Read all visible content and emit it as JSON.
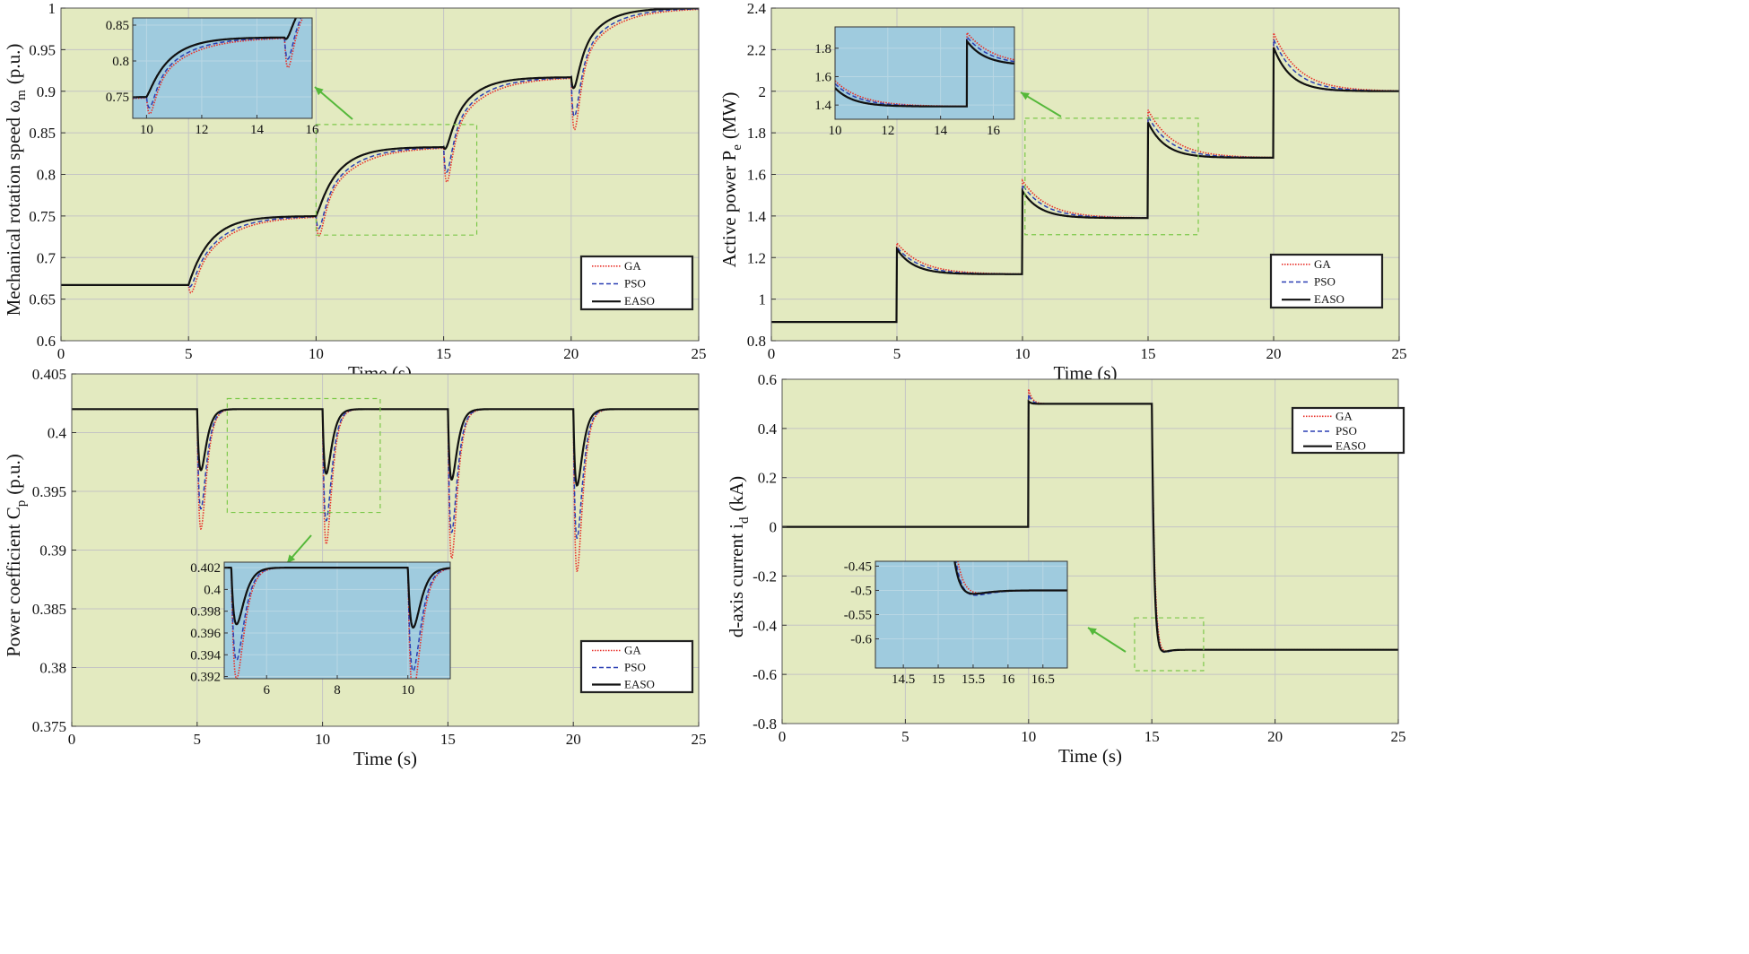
{
  "colors": {
    "plot_bg": "#e3eac0",
    "inset_bg": "#9fcbde",
    "grid": "#c4c4c4",
    "ga": "#e8302a",
    "pso": "#2a3fb3",
    "easo": "#111111",
    "zoom_box": "#7cc84a",
    "arrow": "#55b83a"
  },
  "legend": [
    "GA",
    "PSO",
    "EASO"
  ],
  "chart_data": [
    {
      "id": "rotation-speed",
      "type": "line",
      "title": "",
      "xlabel": "Time (s)",
      "ylabel": "Mechanical rotation speed ω",
      "ylabel_sub": "m",
      "ylabel_unit": "(p.u.)",
      "xlim": [
        0,
        25
      ],
      "ylim": [
        0.6,
        1.0
      ],
      "xticks": [
        0,
        5,
        10,
        15,
        20,
        25
      ],
      "yticks": [
        0.6,
        0.65,
        0.7,
        0.75,
        0.8,
        0.85,
        0.9,
        0.95,
        1.0
      ],
      "ytick_labels": [
        "0.6",
        "0.65",
        "0.7",
        "0.75",
        "0.8",
        "0.85",
        "0.9",
        "0.95",
        "1"
      ],
      "legend_position": "lower-right",
      "inset_position": "top-left",
      "step_times": [
        5,
        10,
        15,
        20
      ],
      "levels": [
        0.667,
        0.75,
        0.833,
        0.917,
        1.0
      ],
      "dips": {
        "GA": [
          0.65,
          0.718,
          0.782,
          0.845
        ],
        "PSO": [
          0.658,
          0.726,
          0.793,
          0.86
        ],
        "EASO": [
          0.667,
          0.748,
          0.822,
          0.893
        ]
      },
      "peaks": {
        "GA": [
          null,
          null,
          null,
          null
        ],
        "PSO": [
          null,
          null,
          null,
          null
        ],
        "EASO": [
          null,
          null,
          null,
          null
        ]
      },
      "tau": [
        1.0,
        1.0,
        1.0,
        1.0
      ],
      "inset": {
        "xlim": [
          9.5,
          16
        ],
        "ylim": [
          0.72,
          0.86
        ],
        "xticks": [
          10,
          12,
          14,
          16
        ],
        "yticks": [
          0.75,
          0.8,
          0.85
        ],
        "xtick_labels": [
          "10",
          "12",
          "14",
          "16"
        ],
        "ytick_labels": [
          "0.75",
          "0.8",
          "0.85"
        ]
      },
      "zoom_region": {
        "x": [
          10,
          16.3
        ],
        "y": [
          0.727,
          0.86
        ]
      }
    },
    {
      "id": "active-power",
      "type": "line",
      "title": "",
      "xlabel": "Time (s)",
      "ylabel": "Active power P",
      "ylabel_sub": "e",
      "ylabel_unit": "(MW)",
      "xlim": [
        0,
        25
      ],
      "ylim": [
        0.8,
        2.4
      ],
      "xticks": [
        0,
        5,
        10,
        15,
        20,
        25
      ],
      "yticks": [
        0.8,
        1.0,
        1.2,
        1.4,
        1.6,
        1.8,
        2.0,
        2.2,
        2.4
      ],
      "ytick_labels": [
        "0.8",
        "1",
        "1.2",
        "1.4",
        "1.6",
        "1.8",
        "2",
        "2.2",
        "2.4"
      ],
      "legend_position": "lower-right",
      "inset_position": "top-left",
      "step_times": [
        5,
        10,
        15,
        20
      ],
      "levels": [
        0.89,
        1.12,
        1.39,
        1.68,
        2.0
      ],
      "dips": {
        "GA": [
          null,
          null,
          null,
          null
        ],
        "PSO": [
          null,
          null,
          null,
          null
        ],
        "EASO": [
          null,
          null,
          null,
          null
        ]
      },
      "peaks": {
        "GA": [
          1.27,
          1.57,
          1.91,
          2.28
        ],
        "PSO": [
          1.25,
          1.55,
          1.88,
          2.25
        ],
        "EASO": [
          1.24,
          1.52,
          1.85,
          2.21
        ]
      },
      "tau": [
        0.8,
        0.8,
        0.8,
        0.8
      ],
      "inset": {
        "xlim": [
          10,
          16.8
        ],
        "ylim": [
          1.3,
          1.95
        ],
        "xticks": [
          10,
          12,
          14,
          16
        ],
        "yticks": [
          1.4,
          1.6,
          1.8
        ],
        "xtick_labels": [
          "10",
          "12",
          "14",
          "16"
        ],
        "ytick_labels": [
          "1.4",
          "1.6",
          "1.8"
        ]
      },
      "zoom_region": {
        "x": [
          10.1,
          17.0
        ],
        "y": [
          1.31,
          1.87
        ]
      }
    },
    {
      "id": "power-coefficient",
      "type": "line",
      "title": "",
      "xlabel": "Time (s)",
      "ylabel": "Power coefficient C",
      "ylabel_sub": "p",
      "ylabel_unit": "(p.u.)",
      "xlim": [
        0,
        25
      ],
      "ylim": [
        0.375,
        0.405
      ],
      "xticks": [
        0,
        5,
        10,
        15,
        20,
        25
      ],
      "yticks": [
        0.375,
        0.38,
        0.385,
        0.39,
        0.395,
        0.4,
        0.405
      ],
      "ytick_labels": [
        "0.375",
        "0.38",
        "0.385",
        "0.39",
        "0.395",
        "0.4",
        "0.405"
      ],
      "legend_position": "lower-right",
      "inset_position": "lower-center",
      "step_times": [
        5,
        10,
        15,
        20
      ],
      "levels": [
        0.402,
        0.402,
        0.402,
        0.402,
        0.402
      ],
      "dips": {
        "GA": [
          0.3918,
          0.3905,
          0.3893,
          0.3882
        ],
        "PSO": [
          0.3935,
          0.3925,
          0.3915,
          0.391
        ],
        "EASO": [
          0.3968,
          0.3965,
          0.396,
          0.3955
        ]
      },
      "peaks": {
        "GA": [
          null,
          null,
          null,
          null
        ],
        "PSO": [
          null,
          null,
          null,
          null
        ],
        "EASO": [
          null,
          null,
          null,
          null
        ]
      },
      "tau": [
        0.45,
        0.45,
        0.45,
        0.45
      ],
      "inset": {
        "xlim": [
          4.8,
          11.2
        ],
        "ylim": [
          0.3918,
          0.4025
        ],
        "xticks": [
          6,
          8,
          10
        ],
        "yticks": [
          0.392,
          0.394,
          0.396,
          0.398,
          0.4,
          0.402
        ],
        "xtick_labels": [
          "6",
          "8",
          "10"
        ],
        "ytick_labels": [
          "0.392",
          "0.394",
          "0.396",
          "0.398",
          "0.4",
          "0.402"
        ]
      },
      "zoom_region": {
        "x": [
          6.2,
          12.3
        ],
        "y": [
          0.3932,
          0.4029
        ]
      }
    },
    {
      "id": "d-axis-current",
      "type": "line",
      "title": "",
      "xlabel": "Time (s)",
      "ylabel": "d-axis current i",
      "ylabel_sub": "d",
      "ylabel_unit": "(kA)",
      "xlim": [
        0,
        25
      ],
      "ylim": [
        -0.8,
        0.6
      ],
      "xticks": [
        0,
        5,
        10,
        15,
        20,
        25
      ],
      "yticks": [
        -0.8,
        -0.6,
        -0.4,
        -0.2,
        0,
        0.2,
        0.4,
        0.6
      ],
      "ytick_labels": [
        "-0.8",
        "-0.6",
        "-0.4",
        "-0.2",
        "0",
        "0.2",
        "0.4",
        "0.6"
      ],
      "legend_position": "top-right",
      "inset_position": "lower-center",
      "step_times": [
        10,
        15
      ],
      "levels": [
        0.0,
        0.5,
        -0.5
      ],
      "dips": {
        "GA": [
          null,
          -0.62
        ],
        "PSO": [
          null,
          -0.6
        ],
        "EASO": [
          null,
          -0.545
        ]
      },
      "peaks": {
        "GA": [
          0.56,
          null
        ],
        "PSO": [
          0.54,
          null
        ],
        "EASO": [
          0.51,
          null
        ]
      },
      "tau": [
        0.12,
        0.12
      ],
      "inset": {
        "xlim": [
          14.1,
          16.85
        ],
        "ylim": [
          -0.66,
          -0.44
        ],
        "xticks": [
          14.5,
          15,
          15.5,
          16,
          16.5
        ],
        "yticks": [
          -0.6,
          -0.55,
          -0.5,
          -0.45
        ],
        "xtick_labels": [
          "14.5",
          "15",
          "15.5",
          "16",
          "16.5"
        ],
        "ytick_labels": [
          "-0.6",
          "-0.55",
          "-0.5",
          "-0.45"
        ]
      },
      "zoom_region": {
        "x": [
          14.3,
          17.1
        ],
        "y": [
          -0.585,
          -0.37
        ]
      }
    }
  ]
}
